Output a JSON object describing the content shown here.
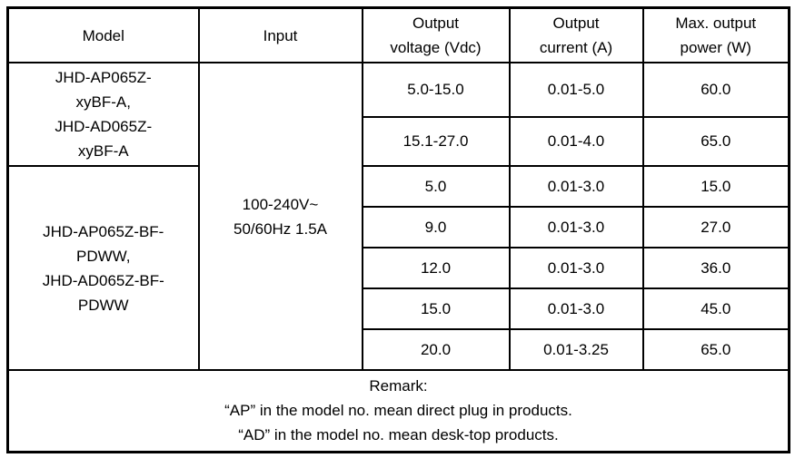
{
  "table": {
    "headers": {
      "model": "Model",
      "input": "Input",
      "output_voltage": [
        "Output",
        "voltage (Vdc)"
      ],
      "output_current": [
        "Output",
        "current (A)"
      ],
      "max_output_power": [
        "Max. output",
        "power (W)"
      ]
    },
    "model_groups": [
      {
        "lines": [
          "JHD-AP065Z-",
          "xyBF-A,",
          "JHD-AD065Z-",
          "xyBF-A"
        ]
      },
      {
        "lines": [
          "JHD-AP065Z-BF-",
          "PDWW,",
          "JHD-AD065Z-BF-",
          "PDWW"
        ]
      }
    ],
    "input_value": [
      "100-240V~",
      "50/60Hz 1.5A"
    ],
    "rows": [
      {
        "voltage": "5.0-15.0",
        "current": "0.01-5.0",
        "power": "60.0"
      },
      {
        "voltage": "15.1-27.0",
        "current": "0.01-4.0",
        "power": "65.0"
      },
      {
        "voltage": "5.0",
        "current": "0.01-3.0",
        "power": "15.0"
      },
      {
        "voltage": "9.0",
        "current": "0.01-3.0",
        "power": "27.0"
      },
      {
        "voltage": "12.0",
        "current": "0.01-3.0",
        "power": "36.0"
      },
      {
        "voltage": "15.0",
        "current": "0.01-3.0",
        "power": "45.0"
      },
      {
        "voltage": "20.0",
        "current": "0.01-3.25",
        "power": "65.0"
      }
    ],
    "remark": {
      "lines": [
        "Remark:",
        "“AP” in the model no. mean direct plug in products.",
        "“AD” in the model no. mean desk-top products."
      ]
    }
  },
  "colors": {
    "border": "#000000",
    "background": "#ffffff",
    "text": "#000000"
  }
}
